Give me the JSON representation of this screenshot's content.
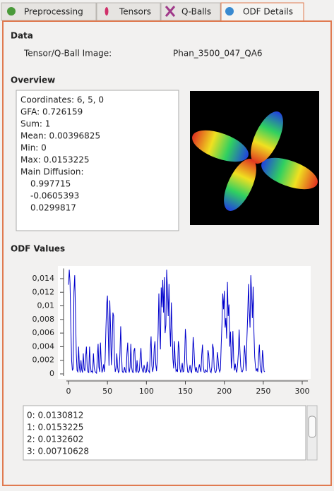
{
  "tabs": [
    "Preprocessing",
    "Tensors",
    "Q-Balls",
    "ODF Details"
  ],
  "data_section": {
    "title": "Data",
    "label": "Tensor/Q-Ball Image:",
    "value": "Phan_3500_047_QA6"
  },
  "overview": {
    "title": "Overview",
    "lines": [
      "Coordinates: 6, 5, 0",
      "GFA: 0.726159",
      "Sum: 1",
      "Mean: 0.00396825",
      "Min: 0",
      "Max: 0.0153225",
      "Main Diffusion:"
    ],
    "diffusion": [
      "0.997715",
      "-0.0605393",
      "0.0299817"
    ]
  },
  "odf_values": {
    "title": "ODF Values",
    "list": [
      "0: 0.0130812",
      "1: 0.0153225",
      "2: 0.0132602",
      "3: 0.00710628"
    ]
  },
  "chart_data": {
    "type": "line",
    "color": "#0000cc",
    "xlim": [
      0,
      300
    ],
    "xticks": [
      0,
      50,
      100,
      150,
      200,
      250,
      300
    ],
    "ylim": [
      0,
      0.0155
    ],
    "yticks": [
      0,
      {
        "value": 0.002,
        "label": "0,002"
      },
      {
        "value": 0.004,
        "label": "0,004"
      },
      {
        "value": 0.006,
        "label": "0,006"
      },
      {
        "value": 0.008,
        "label": "0,008"
      },
      {
        "value": 0.01,
        "label": "0,01"
      },
      {
        "value": 0.012,
        "label": "0,012"
      },
      {
        "value": 0.014,
        "label": "0,014"
      }
    ],
    "values": [
      0.0131,
      0.0153,
      0.0133,
      0.0071,
      0.002,
      0.0005,
      0.0008,
      0.0121,
      0.0145,
      0.009,
      0.003,
      0.0005,
      0.0003,
      0.004,
      0.001,
      0.0002,
      0.002,
      0.0006,
      0.0002,
      0.003,
      0.0008,
      0.0004,
      0.0025,
      0.004,
      0.001,
      0.0003,
      0.0002,
      0.004,
      0.0015,
      0.0003,
      0.0004,
      0.0002,
      0.003,
      0.0009,
      0.0004,
      0.0002,
      0.0001,
      0.0024,
      0.0044,
      0.001,
      0.0003,
      0.0046,
      0.0018,
      0.0002,
      0.0006,
      0.0014,
      0.0003,
      0.002,
      0.0065,
      0.0102,
      0.0115,
      0.006,
      0.0012,
      0.0108,
      0.0068,
      0.0013,
      0.004,
      0.009,
      0.0085,
      0.002,
      0.0003,
      0.0008,
      0.003,
      0.001,
      0.0002,
      0.0004,
      0.003,
      0.007,
      0.003,
      0.0004,
      0.0002,
      0.0004,
      0.001,
      0.0003,
      0.0002,
      0.003,
      0.0046,
      0.0008,
      0.0002,
      0.001,
      0.0044,
      0.001,
      0.0003,
      0.0002,
      0.0034,
      0.0038,
      0.0006,
      0.0002,
      0.002,
      0.0004,
      0.0002,
      0.0005,
      0.0025,
      0.0038,
      0.001,
      0.0005,
      0.0002,
      0.0013,
      0.0007,
      0.0002,
      0.0003,
      0.0018,
      0.0006,
      0.0004,
      0.0002,
      0.0035,
      0.0055,
      0.0012,
      0.0003,
      0.001,
      0.0038,
      0.0048,
      0.0014,
      0.0004,
      0.0022,
      0.006,
      0.0118,
      0.0068,
      0.0036,
      0.0127,
      0.0098,
      0.0138,
      0.009,
      0.0142,
      0.006,
      0.0072,
      0.0153,
      0.0125,
      0.0085,
      0.0132,
      0.007,
      0.004,
      0.0105,
      0.0063,
      0.0022,
      0.0008,
      0.0048,
      0.0018,
      0.0004,
      0.0006,
      0.0003,
      0.0048,
      0.0038,
      0.0008,
      0.0002,
      0.0007,
      0.0016,
      0.0003,
      0.0004,
      0.002,
      0.0066,
      0.0048,
      0.0016,
      0.0003,
      0.0002,
      0.0006,
      0.0013,
      0.0004,
      0.0002,
      0.0015,
      0.0054,
      0.0038,
      0.0012,
      0.0003,
      0.001,
      0.0003,
      0.0002,
      0.0008,
      0.0014,
      0.0007,
      0.0003,
      0.0028,
      0.0043,
      0.0012,
      0.0003,
      0.0002,
      0.0006,
      0.0004,
      0.0003,
      0.0035,
      0.0028,
      0.001,
      0.0004,
      0.0002,
      0.001,
      0.0044,
      0.0037,
      0.0009,
      0.0003,
      0.0002,
      0.0006,
      0.0032,
      0.0022,
      0.0008,
      0.0003,
      0.0006,
      0.0042,
      0.0075,
      0.0118,
      0.0095,
      0.0122,
      0.0068,
      0.0082,
      0.0052,
      0.0135,
      0.0085,
      0.0102,
      0.004,
      0.0062,
      0.0008,
      0.0025,
      0.0063,
      0.0022,
      0.0005,
      0.0015,
      0.0006,
      0.0002,
      0.0013,
      0.003,
      0.0065,
      0.0036,
      0.0012,
      0.0004,
      0.0003,
      0.0006,
      0.0022,
      0.0042,
      0.0024,
      0.0004,
      0.0052,
      0.0085,
      0.0132,
      0.0095,
      0.0068,
      0.0145,
      0.0118,
      0.0082,
      0.0128,
      0.0062,
      0.0025,
      0.001,
      0.0004,
      0.0008,
      0.0003,
      0.0026,
      0.0043,
      0.0012,
      0.0004,
      0.0002,
      0.0035,
      0.0022,
      0.0004,
      0.0003
    ]
  }
}
